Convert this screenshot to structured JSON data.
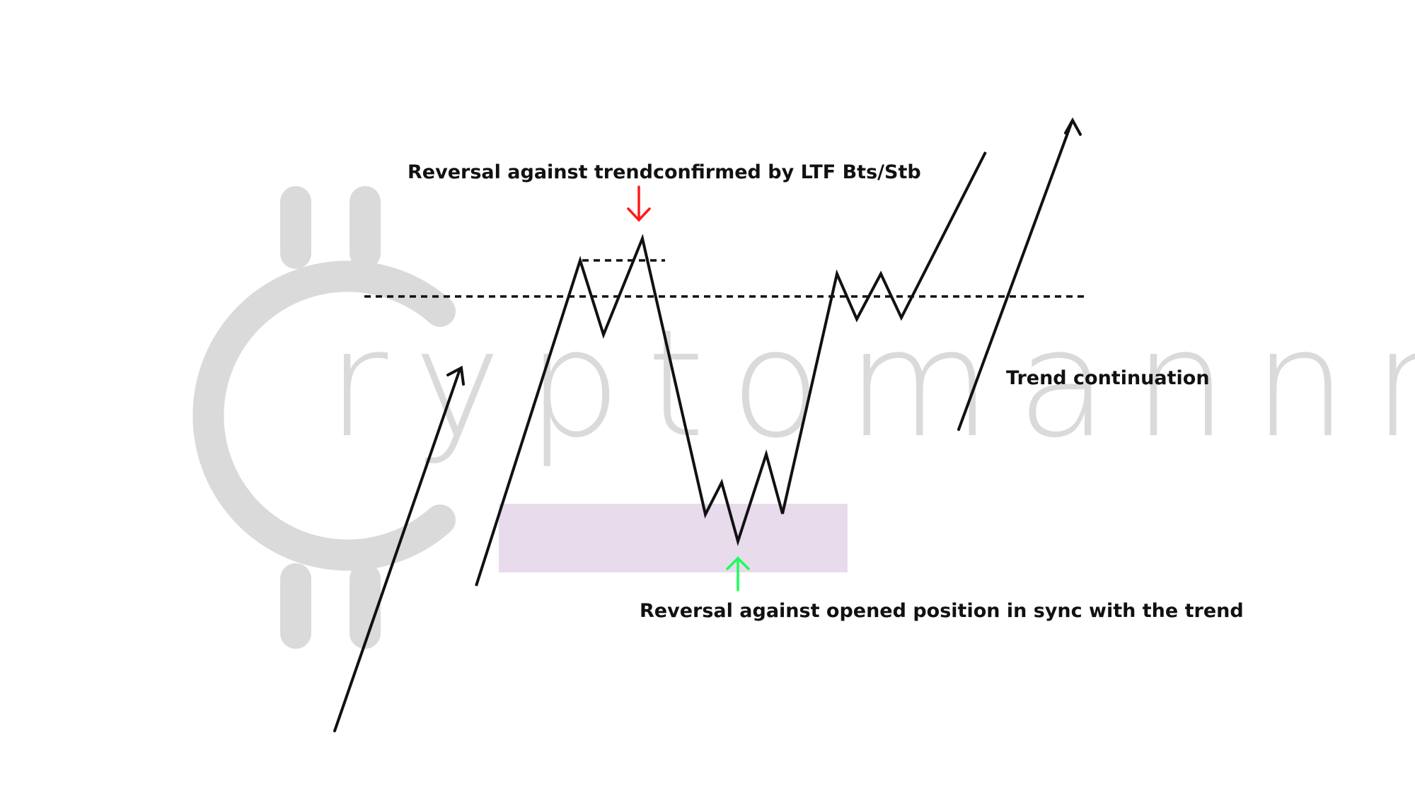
{
  "watermark": {
    "text": "ryptomannn",
    "color": "#dadada"
  },
  "annotations": {
    "top": "Reversal against trendconfirmed by LTF Bts/Stb",
    "bottom": "Reversal against opened position in sync with the trend",
    "right": "Trend continuation"
  },
  "colors": {
    "line": "#111111",
    "zone": "#e8dbec",
    "arrow_down": "#ff1a1a",
    "arrow_up": "#1aff5a",
    "watermark": "#dadada"
  },
  "icons": {
    "watermark_logo": "bitcoin-c-logo",
    "down_marker": "arrow-down-icon",
    "up_marker": "arrow-up-icon"
  }
}
